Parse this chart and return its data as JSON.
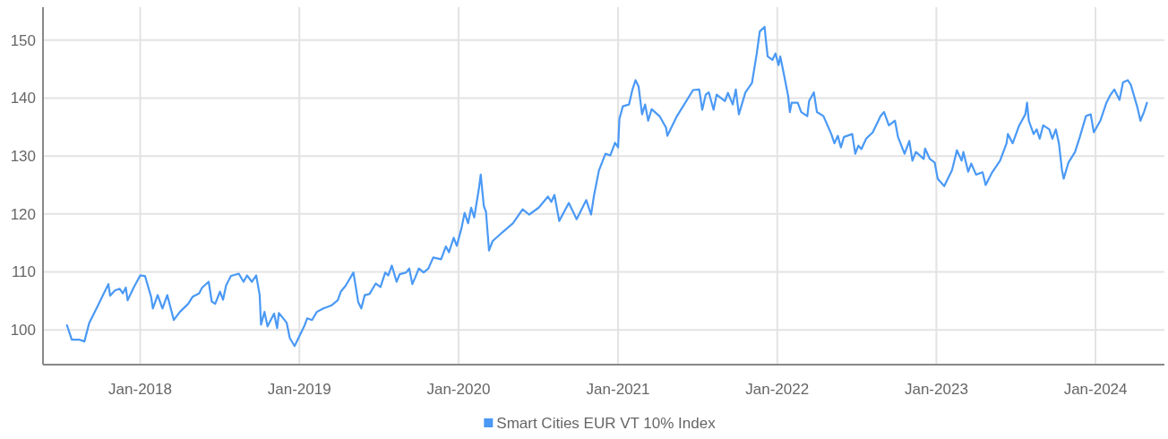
{
  "chart_data": {
    "type": "line",
    "xlim": [
      "2017-05-23",
      "2024-06-07"
    ],
    "ylim": [
      94,
      155.7
    ],
    "xticks": [
      {
        "value": "2018-01-01",
        "label": "Jan-2018"
      },
      {
        "value": "2019-01-01",
        "label": "Jan-2019"
      },
      {
        "value": "2020-01-01",
        "label": "Jan-2020"
      },
      {
        "value": "2021-01-01",
        "label": "Jan-2021"
      },
      {
        "value": "2022-01-01",
        "label": "Jan-2022"
      },
      {
        "value": "2023-01-01",
        "label": "Jan-2023"
      },
      {
        "value": "2024-01-01",
        "label": "Jan-2024"
      }
    ],
    "yticks": [
      100,
      110,
      120,
      130,
      140,
      150
    ],
    "grid": true,
    "legend": "bottom",
    "marker": "none",
    "line_style": "solid",
    "series": [
      {
        "name": "Smart Cities EUR VT 10% Index",
        "color": "#4a99f5",
        "x": [
          "2017-07-17",
          "2017-07-28",
          "2017-08-15",
          "2017-08-26",
          "2017-09-06",
          "2017-09-24",
          "2017-10-09",
          "2017-10-20",
          "2017-10-24",
          "2017-11-04",
          "2017-11-15",
          "2017-11-22",
          "2017-11-29",
          "2017-12-03",
          "2017-12-17",
          "2018-01-01",
          "2018-01-12",
          "2018-01-26",
          "2018-01-30",
          "2018-02-10",
          "2018-02-21",
          "2018-03-04",
          "2018-03-19",
          "2018-04-02",
          "2018-04-21",
          "2018-05-01",
          "2018-05-16",
          "2018-05-23",
          "2018-06-07",
          "2018-06-14",
          "2018-06-22",
          "2018-07-03",
          "2018-07-10",
          "2018-07-17",
          "2018-07-28",
          "2018-08-15",
          "2018-08-26",
          "2018-09-03",
          "2018-09-14",
          "2018-09-24",
          "2018-10-02",
          "2018-10-05",
          "2018-10-13",
          "2018-10-20",
          "2018-11-04",
          "2018-11-11",
          "2018-11-15",
          "2018-11-26",
          "2018-12-03",
          "2018-12-10",
          "2018-12-21",
          "2018-12-28",
          "2019-01-12",
          "2019-01-19",
          "2019-01-30",
          "2019-02-10",
          "2019-02-25",
          "2019-03-15",
          "2019-03-30",
          "2019-04-06",
          "2019-04-17",
          "2019-05-05",
          "2019-05-16",
          "2019-05-23",
          "2019-05-31",
          "2019-06-11",
          "2019-06-25",
          "2019-07-06",
          "2019-07-17",
          "2019-07-24",
          "2019-08-01",
          "2019-08-12",
          "2019-08-19",
          "2019-09-03",
          "2019-09-10",
          "2019-09-17",
          "2019-09-24",
          "2019-10-02",
          "2019-10-13",
          "2019-10-24",
          "2019-11-04",
          "2019-11-22",
          "2019-12-03",
          "2019-12-10",
          "2019-12-21",
          "2019-12-28",
          "2020-01-08",
          "2020-01-15",
          "2020-01-23",
          "2020-01-30",
          "2020-02-06",
          "2020-02-17",
          "2020-02-21",
          "2020-02-28",
          "2020-03-04",
          "2020-03-11",
          "2020-03-19",
          "2020-04-10",
          "2020-05-05",
          "2020-05-27",
          "2020-06-11",
          "2020-07-03",
          "2020-07-24",
          "2020-08-01",
          "2020-08-08",
          "2020-08-19",
          "2020-09-10",
          "2020-09-28",
          "2020-10-20",
          "2020-10-31",
          "2020-11-07",
          "2020-11-18",
          "2020-12-03",
          "2020-12-14",
          "2020-12-25",
          "2021-01-01",
          "2021-01-04",
          "2021-01-12",
          "2021-01-26",
          "2021-02-03",
          "2021-02-10",
          "2021-02-17",
          "2021-02-25",
          "2021-03-04",
          "2021-03-11",
          "2021-03-19",
          "2021-04-06",
          "2021-04-21",
          "2021-04-24",
          "2021-05-16",
          "2021-05-31",
          "2021-06-22",
          "2021-07-06",
          "2021-07-13",
          "2021-07-21",
          "2021-07-28",
          "2021-08-08",
          "2021-08-15",
          "2021-09-03",
          "2021-09-10",
          "2021-09-21",
          "2021-09-28",
          "2021-10-05",
          "2021-10-20",
          "2021-11-04",
          "2021-11-15",
          "2021-11-22",
          "2021-12-03",
          "2021-12-06",
          "2021-12-10",
          "2021-12-21",
          "2021-12-28",
          "2022-01-04",
          "2022-01-08",
          "2022-01-15",
          "2022-01-26",
          "2022-01-30",
          "2022-02-03",
          "2022-02-17",
          "2022-02-25",
          "2022-03-11",
          "2022-03-15",
          "2022-03-26",
          "2022-04-02",
          "2022-04-17",
          "2022-05-05",
          "2022-05-12",
          "2022-05-20",
          "2022-05-27",
          "2022-06-03",
          "2022-06-22",
          "2022-06-29",
          "2022-07-06",
          "2022-07-13",
          "2022-07-24",
          "2022-08-08",
          "2022-08-26",
          "2022-09-03",
          "2022-09-14",
          "2022-09-28",
          "2022-10-05",
          "2022-10-20",
          "2022-10-31",
          "2022-11-07",
          "2022-11-15",
          "2022-12-03",
          "2022-12-06",
          "2022-12-17",
          "2022-12-28",
          "2023-01-04",
          "2023-01-19",
          "2023-01-30",
          "2023-02-06",
          "2023-02-17",
          "2023-02-28",
          "2023-03-04",
          "2023-03-15",
          "2023-03-22",
          "2023-04-02",
          "2023-04-17",
          "2023-04-24",
          "2023-05-09",
          "2023-05-27",
          "2023-06-11",
          "2023-06-14",
          "2023-06-25",
          "2023-07-10",
          "2023-07-24",
          "2023-07-28",
          "2023-08-01",
          "2023-08-12",
          "2023-08-19",
          "2023-08-26",
          "2023-09-03",
          "2023-09-17",
          "2023-09-24",
          "2023-10-02",
          "2023-10-09",
          "2023-10-16",
          "2023-10-20",
          "2023-10-31",
          "2023-11-15",
          "2023-11-26",
          "2023-12-10",
          "2023-12-21",
          "2023-12-28",
          "2024-01-12",
          "2024-01-26",
          "2024-02-03",
          "2024-02-13",
          "2024-02-25",
          "2024-03-04",
          "2024-03-15",
          "2024-03-22",
          "2024-04-06",
          "2024-04-13",
          "2024-04-21",
          "2024-04-28"
        ],
        "values": [
          100.8,
          98.3,
          98.3,
          98.0,
          101.2,
          103.9,
          106.2,
          107.9,
          105.9,
          106.8,
          107.1,
          106.3,
          107.3,
          105.1,
          107.3,
          109.4,
          109.3,
          105.7,
          103.7,
          106.0,
          103.7,
          106.0,
          101.7,
          103.1,
          104.5,
          105.7,
          106.3,
          107.3,
          108.3,
          104.9,
          104.5,
          106.6,
          105.2,
          107.7,
          109.3,
          109.7,
          108.3,
          109.4,
          108.3,
          109.4,
          106.0,
          100.9,
          103.1,
          100.6,
          102.8,
          100.3,
          102.9,
          101.9,
          101.2,
          98.6,
          97.2,
          98.3,
          100.6,
          102.0,
          101.7,
          103.1,
          103.7,
          104.2,
          105.1,
          106.6,
          107.6,
          109.9,
          104.8,
          103.7,
          106.0,
          106.2,
          108.0,
          107.4,
          109.9,
          109.4,
          111.1,
          108.3,
          109.6,
          109.9,
          110.6,
          107.9,
          109.1,
          110.6,
          109.9,
          110.6,
          112.5,
          112.2,
          114.4,
          113.4,
          115.9,
          114.5,
          117.6,
          120.2,
          118.4,
          121.1,
          119.4,
          124.5,
          126.8,
          121.4,
          120.4,
          113.7,
          115.3,
          116.8,
          118.4,
          120.8,
          119.9,
          121.1,
          123.0,
          122.1,
          123.3,
          118.8,
          121.9,
          119.1,
          122.4,
          119.9,
          123.3,
          127.5,
          130.4,
          130.1,
          132.3,
          131.5,
          136.4,
          138.6,
          138.9,
          141.5,
          143.1,
          142.0,
          137.2,
          138.9,
          136.1,
          138.1,
          136.9,
          134.9,
          133.5,
          136.9,
          138.7,
          141.4,
          141.5,
          138.0,
          140.6,
          141.0,
          138.0,
          140.6,
          139.5,
          140.9,
          138.9,
          141.5,
          137.2,
          141.0,
          142.6,
          147.7,
          151.5,
          152.3,
          150.0,
          147.2,
          146.6,
          147.7,
          145.7,
          147.2,
          144.6,
          140.4,
          137.6,
          139.2,
          139.2,
          137.6,
          136.9,
          139.5,
          141.0,
          137.6,
          136.9,
          133.8,
          132.2,
          133.5,
          131.5,
          133.3,
          133.8,
          130.4,
          131.8,
          131.2,
          133.0,
          134.1,
          136.9,
          137.6,
          135.3,
          136.1,
          133.3,
          130.4,
          132.6,
          129.2,
          130.7,
          129.5,
          131.3,
          129.5,
          128.9,
          126.1,
          124.8,
          126.5,
          127.6,
          131.0,
          129.2,
          130.7,
          127.3,
          128.7,
          126.8,
          127.2,
          125.0,
          127.2,
          129.2,
          132.2,
          133.8,
          132.2,
          135.3,
          137.2,
          139.2,
          136.1,
          133.8,
          134.6,
          133.0,
          135.3,
          134.6,
          133.0,
          134.6,
          132.2,
          127.6,
          126.1,
          128.9,
          130.7,
          133.3,
          136.9,
          137.2,
          134.1,
          136.1,
          139.2,
          140.4,
          141.5,
          139.7,
          142.7,
          143.1,
          142.3,
          138.4,
          136.1,
          137.6,
          139.2
        ]
      }
    ]
  }
}
